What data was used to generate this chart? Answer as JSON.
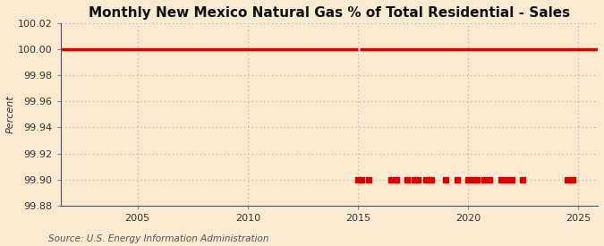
{
  "title": "Monthly New Mexico Natural Gas % of Total Residential - Sales",
  "ylabel": "Percent",
  "source": "Source: U.S. Energy Information Administration",
  "background_color": "#faebd0",
  "plot_bg_color": "#faebd0",
  "line_color": "#dd0000",
  "ylim": [
    99.88,
    100.02
  ],
  "yticks": [
    99.88,
    99.9,
    99.92,
    99.94,
    99.96,
    99.98,
    100.0,
    100.02
  ],
  "xlim_start": 2001.5,
  "xlim_end": 2025.9,
  "xticks": [
    2005,
    2010,
    2015,
    2020,
    2025
  ],
  "series1_y": 100.0,
  "series1_gap_start": 2015.0,
  "series1_gap_end": 2015.08,
  "series2_points_x": [
    2015.0,
    2015.17,
    2015.5,
    2016.5,
    2016.75,
    2017.25,
    2017.58,
    2017.75,
    2018.08,
    2018.33,
    2019.0,
    2019.5,
    2020.0,
    2020.25,
    2020.42,
    2020.75,
    2021.0,
    2021.5,
    2021.75,
    2022.0,
    2022.5,
    2024.5,
    2024.75
  ],
  "series2_y": 99.9,
  "title_fontsize": 11,
  "tick_fontsize": 8,
  "ylabel_fontsize": 8,
  "source_fontsize": 7.5
}
